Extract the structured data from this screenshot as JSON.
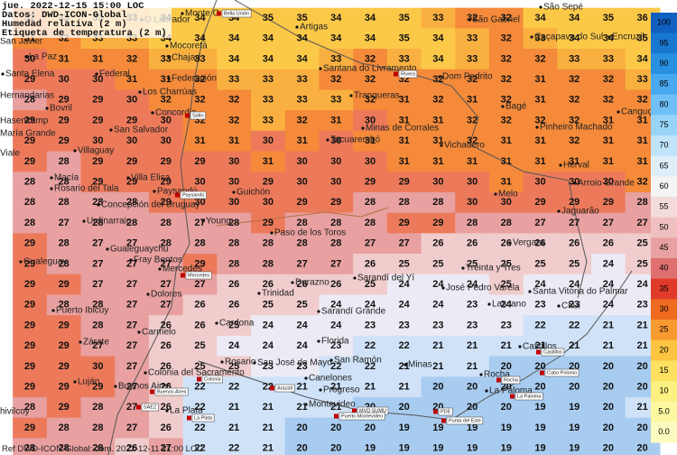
{
  "header": [
    "jue. 2022-12-15 15:00 LOC",
    "Datos: DWD-ICON-Global",
    "Humedad relativa (2 m)",
    "Etiqueta de temperatura (2 m)"
  ],
  "footer": "Ref DWD-ICON-Global: dom. 2022-12-11 21:00 LOC",
  "colorbar": {
    "labels": [
      "100",
      "95",
      "90",
      "85",
      "80",
      "75",
      "70",
      "65",
      "60",
      "55",
      "50",
      "45",
      "40",
      "35",
      "30",
      "25",
      "20",
      "15",
      "10",
      "5.0",
      "0.0"
    ],
    "colors": [
      "#1060c0",
      "#1878d0",
      "#2890e0",
      "#48a8f0",
      "#70c0f8",
      "#98d4f8",
      "#c0e4fa",
      "#e0eefa",
      "#f4f4f4",
      "#f4dcdc",
      "#f0c0c0",
      "#e8a0a0",
      "#e07070",
      "#e03a2a",
      "#f06a20",
      "#f89a30",
      "#fcc440",
      "#fce060",
      "#fcf080",
      "#fcf8a0",
      "#fcfcc0"
    ]
  },
  "temperature_grid": [
    [
      32,
      33,
      33,
      33,
      34,
      34,
      34,
      35,
      35,
      34,
      34,
      35,
      33,
      32,
      32,
      34,
      34,
      35,
      36
    ],
    [
      31,
      32,
      33,
      33,
      34,
      34,
      34,
      34,
      34,
      34,
      34,
      35,
      34,
      33,
      32,
      33,
      34,
      34,
      35
    ],
    [
      30,
      31,
      31,
      32,
      33,
      33,
      34,
      34,
      34,
      33,
      32,
      33,
      34,
      33,
      32,
      32,
      33,
      33,
      34
    ],
    [
      29,
      30,
      30,
      31,
      31,
      32,
      33,
      33,
      33,
      32,
      32,
      32,
      32,
      32,
      32,
      31,
      32,
      32,
      33
    ],
    [
      28,
      29,
      29,
      30,
      32,
      32,
      32,
      33,
      33,
      33,
      32,
      31,
      32,
      31,
      32,
      31,
      32,
      32,
      32
    ],
    [
      29,
      29,
      29,
      29,
      30,
      32,
      32,
      33,
      32,
      31,
      30,
      31,
      31,
      32,
      32,
      32,
      32,
      31,
      31
    ],
    [
      29,
      29,
      30,
      30,
      30,
      31,
      31,
      30,
      31,
      30,
      31,
      31,
      31,
      32,
      31,
      31,
      32,
      31,
      31
    ],
    [
      29,
      28,
      29,
      29,
      29,
      29,
      30,
      31,
      30,
      30,
      30,
      31,
      31,
      31,
      31,
      31,
      31,
      31,
      31
    ],
    [
      28,
      28,
      29,
      29,
      29,
      30,
      30,
      29,
      30,
      30,
      29,
      29,
      30,
      30,
      31,
      30,
      30,
      30,
      32
    ],
    [
      28,
      28,
      28,
      28,
      29,
      30,
      30,
      30,
      29,
      29,
      28,
      28,
      28,
      30,
      30,
      29,
      29,
      29,
      28
    ],
    [
      28,
      27,
      28,
      28,
      28,
      27,
      28,
      29,
      28,
      28,
      28,
      29,
      29,
      28,
      28,
      27,
      27,
      27,
      27
    ],
    [
      29,
      28,
      27,
      27,
      28,
      28,
      28,
      28,
      28,
      28,
      27,
      27,
      26,
      26,
      26,
      26,
      26,
      26,
      25
    ],
    [
      29,
      28,
      27,
      27,
      27,
      29,
      28,
      28,
      27,
      27,
      26,
      25,
      25,
      25,
      25,
      25,
      25,
      24,
      25
    ],
    [
      29,
      29,
      27,
      27,
      27,
      27,
      26,
      26,
      26,
      26,
      25,
      24,
      24,
      24,
      25,
      24,
      24,
      24,
      24
    ],
    [
      29,
      28,
      28,
      27,
      27,
      26,
      26,
      25,
      25,
      24,
      24,
      24,
      24,
      23,
      24,
      23,
      23,
      24,
      23
    ],
    [
      29,
      29,
      28,
      27,
      26,
      26,
      25,
      24,
      24,
      24,
      23,
      23,
      23,
      23,
      23,
      22,
      22,
      21,
      21
    ],
    [
      29,
      29,
      27,
      27,
      26,
      25,
      24,
      24,
      24,
      23,
      22,
      22,
      21,
      21,
      21,
      21,
      21,
      21,
      21
    ],
    [
      29,
      29,
      30,
      27,
      26,
      25,
      25,
      23,
      23,
      22,
      22,
      21,
      21,
      21,
      20,
      20,
      20,
      20,
      20
    ],
    [
      29,
      29,
      29,
      27,
      26,
      22,
      22,
      22,
      21,
      21,
      21,
      21,
      20,
      20,
      20,
      20,
      20,
      20,
      20
    ],
    [
      28,
      29,
      28,
      27,
      26,
      22,
      21,
      21,
      21,
      21,
      20,
      20,
      20,
      20,
      20,
      19,
      19,
      20,
      21
    ],
    [
      29,
      28,
      28,
      27,
      26,
      22,
      21,
      21,
      20,
      20,
      20,
      19,
      19,
      19,
      19,
      19,
      19,
      20,
      20
    ],
    [
      28,
      28,
      28,
      26,
      27,
      22,
      22,
      21,
      20,
      20,
      19,
      19,
      19,
      19,
      19,
      19,
      19,
      20,
      20
    ]
  ],
  "places": [
    "Monte C",
    "O.Labrador",
    "São Sepé",
    "San Javier",
    "Artigas",
    "São Gabriel",
    "La Paz",
    "Mocoretá",
    "Caçapava do Sul",
    "Encruzil",
    "Chajarí",
    "Santa Elena",
    "Federal",
    "Federación",
    "Santana do Livramento",
    "Dom Pedrito",
    "Hernandarias",
    "Los Charrúas",
    "Tranqueras",
    "Bovril",
    "Concordia",
    "Bagé",
    "Canguç",
    "Hasenkamp",
    "Minas de Corrales",
    "Pinheiro Machado",
    "María Grande",
    "San Salvador",
    "Tacuarembó",
    "Vichadero",
    "Viale",
    "Villaguay",
    "Herval",
    "Macía",
    "Villa Elisa",
    "Arroio Grande",
    "Rosario del Tala",
    "Paysandú",
    "Guichón",
    "Melo",
    "Concepción del Uruguay",
    "Jaguarão",
    "Urdinarrain",
    "Young",
    "Paso de los Toros",
    "Vergara",
    "Gualeguaychú",
    "Fray Bentos",
    "Gualeguay",
    "Mercedes",
    "Treinta y Tres",
    "Sarandí del Yí",
    "José Pedro Varela",
    "Santa Vitória do Palmar",
    "Dolores",
    "Trinidad",
    "Durazno",
    "Lascano",
    "Chuí",
    "Puerto Ibicuy",
    "Sarandí Grande",
    "Cardona",
    "Carmelo",
    "Florida",
    "Zárate",
    "Castillos",
    "Rosario",
    "San José de Mayo",
    "San Ramón",
    "Minas",
    "Colonia del Sacramento",
    "Rocha",
    "Canelones",
    "Luján",
    "Buenos Aires",
    "Progreso",
    "La Paloma",
    "Montevideo",
    "La Plata",
    "hivilcoy"
  ],
  "stations": [
    "Bella Unión",
    "Rivera",
    "Salto",
    "Paysandú",
    "Mercedes",
    "Castillos",
    "Colonia",
    "Rocha",
    "Cabo Polonio",
    "Buenos Aires",
    "Arazatí",
    "La Paloma",
    "SAEZ",
    "MVD SUMU",
    "Puerto Montevideo",
    "PDE",
    "Punta del Este",
    "La Plata"
  ]
}
